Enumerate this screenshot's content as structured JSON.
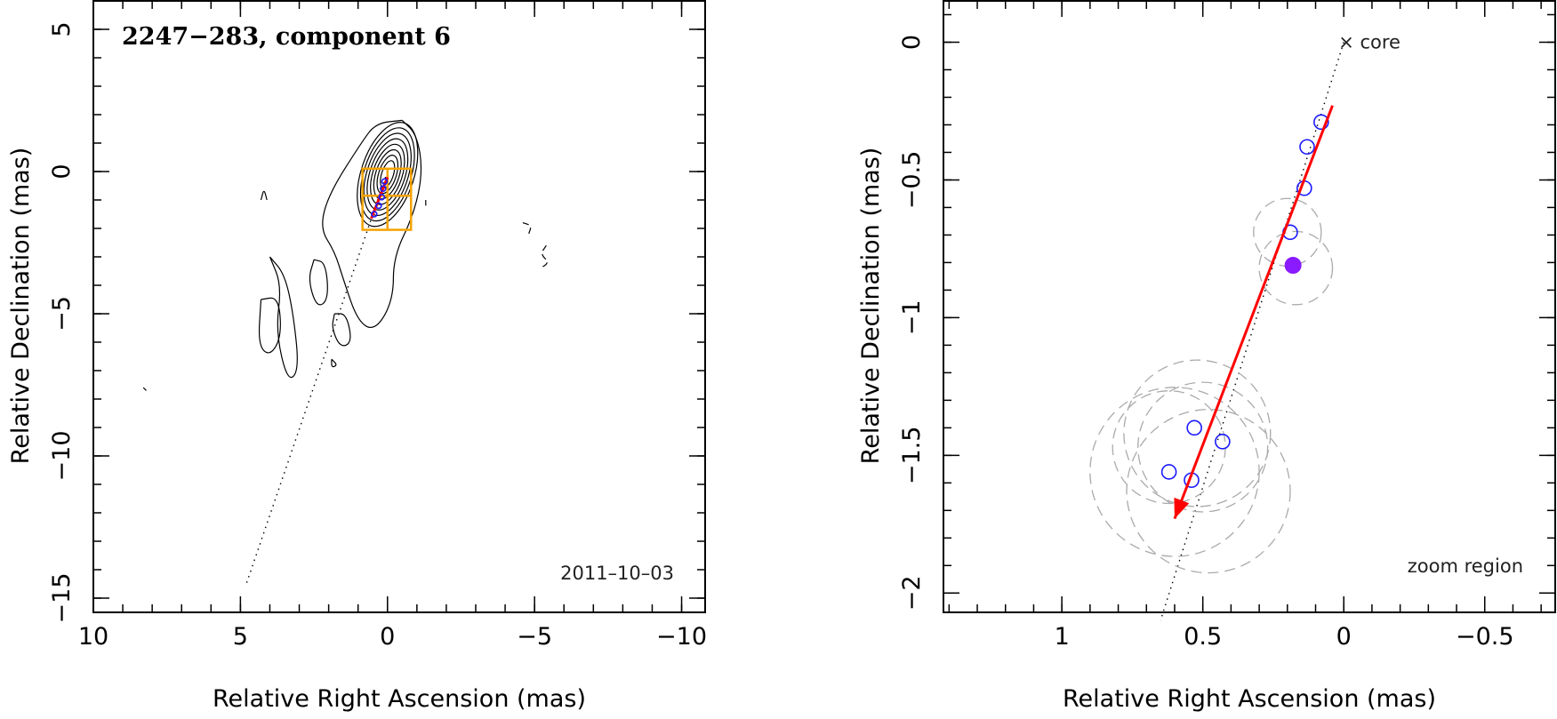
{
  "chart_data": [
    {
      "type": "scatter",
      "title": "2247−283, component 6",
      "xlabel": "Relative Right Ascension (mas)",
      "ylabel": "Relative Declination (mas)",
      "xlim": [
        10,
        -10.8
      ],
      "ylim": [
        -15.5,
        6
      ],
      "xticks": [
        10,
        5,
        0,
        -5,
        -10
      ],
      "xtick_labels": [
        "10",
        "5",
        "0",
        "−5",
        "−10"
      ],
      "yticks": [
        5,
        0,
        -5,
        -10,
        -15
      ],
      "ytick_labels": [
        "5",
        "0",
        "−5",
        "−10",
        "−15"
      ],
      "annotation": "2011–10–03",
      "contour_rings": [
        {
          "rx": 0.9,
          "ry": 1.9
        },
        {
          "rx": 0.8,
          "ry": 1.7
        },
        {
          "rx": 0.7,
          "ry": 1.5
        },
        {
          "rx": 0.6,
          "ry": 1.3
        },
        {
          "rx": 0.5,
          "ry": 1.1
        },
        {
          "rx": 0.4,
          "ry": 0.9
        },
        {
          "rx": 0.3,
          "ry": 0.7
        },
        {
          "rx": 0.2,
          "ry": 0.5
        }
      ],
      "contour_extended": [
        [
          -0.5,
          1.8
        ],
        [
          -1.0,
          1.3
        ],
        [
          -1.2,
          0.0
        ],
        [
          -0.9,
          -1.5
        ],
        [
          -0.2,
          -3.0
        ],
        [
          -0.2,
          -4.5
        ],
        [
          0.4,
          -5.6
        ],
        [
          1.0,
          -5.3
        ],
        [
          1.5,
          -3.8
        ],
        [
          1.8,
          -2.8
        ],
        [
          2.3,
          -2.0
        ],
        [
          2.0,
          -0.8
        ],
        [
          0.9,
          1.0
        ],
        [
          0.4,
          1.7
        ],
        [
          -0.5,
          1.8
        ]
      ],
      "contour_islands": [
        [
          [
            4.0,
            -3.0
          ],
          [
            3.6,
            -4.0
          ],
          [
            3.8,
            -5.6
          ],
          [
            3.4,
            -7.4
          ],
          [
            3.0,
            -7.0
          ],
          [
            3.2,
            -5.0
          ],
          [
            3.5,
            -3.6
          ],
          [
            4.0,
            -3.0
          ]
        ],
        [
          [
            4.3,
            -4.5
          ],
          [
            3.7,
            -4.4
          ],
          [
            3.6,
            -5.8
          ],
          [
            4.0,
            -6.5
          ],
          [
            4.4,
            -6.1
          ],
          [
            4.3,
            -4.5
          ]
        ],
        [
          [
            1.8,
            -5.0
          ],
          [
            1.4,
            -5.0
          ],
          [
            1.2,
            -6.0
          ],
          [
            1.6,
            -6.2
          ],
          [
            1.9,
            -5.5
          ],
          [
            1.8,
            -5.0
          ]
        ],
        [
          [
            2.5,
            -3.1
          ],
          [
            2.1,
            -3.2
          ],
          [
            2.0,
            -4.5
          ],
          [
            2.4,
            -4.8
          ],
          [
            2.7,
            -3.8
          ],
          [
            2.5,
            -3.1
          ]
        ],
        [
          [
            4.3,
            -1.0
          ],
          [
            4.2,
            -0.6
          ],
          [
            4.1,
            -1.0
          ]
        ],
        [
          [
            1.9,
            -6.6
          ],
          [
            1.7,
            -6.8
          ],
          [
            1.9,
            -6.9
          ],
          [
            1.9,
            -6.6
          ]
        ]
      ],
      "contour_neg": [
        [
          [
            -4.6,
            -1.8
          ],
          [
            -4.9,
            -1.9
          ],
          [
            -4.8,
            -2.2
          ]
        ],
        [
          [
            -5.4,
            -2.6
          ],
          [
            -5.2,
            -2.9
          ],
          [
            -5.5,
            -3.2
          ],
          [
            -5.2,
            -3.4
          ]
        ],
        [
          [
            8.3,
            -7.6
          ],
          [
            8.2,
            -7.7
          ]
        ],
        [
          [
            -1.3,
            -1.0
          ],
          [
            -1.3,
            -1.2
          ]
        ]
      ],
      "jet_line": [
        [
          0.0,
          0.0
        ],
        [
          4.8,
          -14.5
        ]
      ],
      "zoom_box": {
        "x": [
          0.85,
          -0.8
        ],
        "y": [
          0.1,
          -2.05
        ]
      },
      "overlay_vector": {
        "from": [
          0.0,
          -0.2
        ],
        "to": [
          0.55,
          -1.65
        ]
      },
      "overlay_points": [
        [
          0.1,
          -0.35
        ],
        [
          0.15,
          -0.6
        ],
        [
          0.2,
          -0.9
        ],
        [
          0.3,
          -1.2
        ],
        [
          0.45,
          -1.5
        ]
      ]
    },
    {
      "type": "scatter",
      "xlabel": "Relative Right Ascension (mas)",
      "ylabel": "Relative Declination (mas)",
      "xlim": [
        1.42,
        -0.75
      ],
      "ylim": [
        -2.07,
        0.15
      ],
      "xticks": [
        1,
        0.5,
        0,
        -0.5
      ],
      "xtick_labels": [
        "1",
        "0.5",
        "0",
        "−0.5"
      ],
      "yticks": [
        0,
        -0.5,
        -1,
        -1.5,
        -2
      ],
      "ytick_labels": [
        "0",
        "−0.5",
        "−1",
        "−1.5",
        "−2"
      ],
      "core_label": "× core",
      "annotation": "zoom region",
      "jet_line": [
        [
          0.0,
          0.0
        ],
        [
          0.65,
          -2.1
        ]
      ],
      "positions": [
        {
          "x": 0.08,
          "y": -0.29
        },
        {
          "x": 0.13,
          "y": -0.38
        },
        {
          "x": 0.14,
          "y": -0.53
        },
        {
          "x": 0.19,
          "y": -0.69
        },
        {
          "x": 0.53,
          "y": -1.4
        },
        {
          "x": 0.43,
          "y": -1.45
        },
        {
          "x": 0.62,
          "y": -1.56
        },
        {
          "x": 0.54,
          "y": -1.59
        }
      ],
      "highlighted": {
        "x": 0.18,
        "y": -0.81
      },
      "fit_components": [
        {
          "x": 0.2,
          "y": -0.69,
          "r": 0.12
        },
        {
          "x": 0.17,
          "y": -0.82,
          "r": 0.13
        },
        {
          "x": 0.5,
          "y": -1.47,
          "r": 0.23
        },
        {
          "x": 0.6,
          "y": -1.56,
          "r": 0.3
        },
        {
          "x": 0.52,
          "y": -1.42,
          "r": 0.26
        },
        {
          "x": 0.48,
          "y": -1.63,
          "r": 0.29
        },
        {
          "x": 0.62,
          "y": -1.47,
          "r": 0.2
        }
      ],
      "arrow": {
        "from": [
          0.04,
          -0.23
        ],
        "to": [
          0.6,
          -1.73
        ]
      },
      "colors": {
        "positions": "#1a1aff",
        "highlighted": "#8a1aff",
        "arrow": "#ff0000",
        "fit_components": "#aaaaaa",
        "zoom_box": "#f5a300"
      }
    }
  ]
}
